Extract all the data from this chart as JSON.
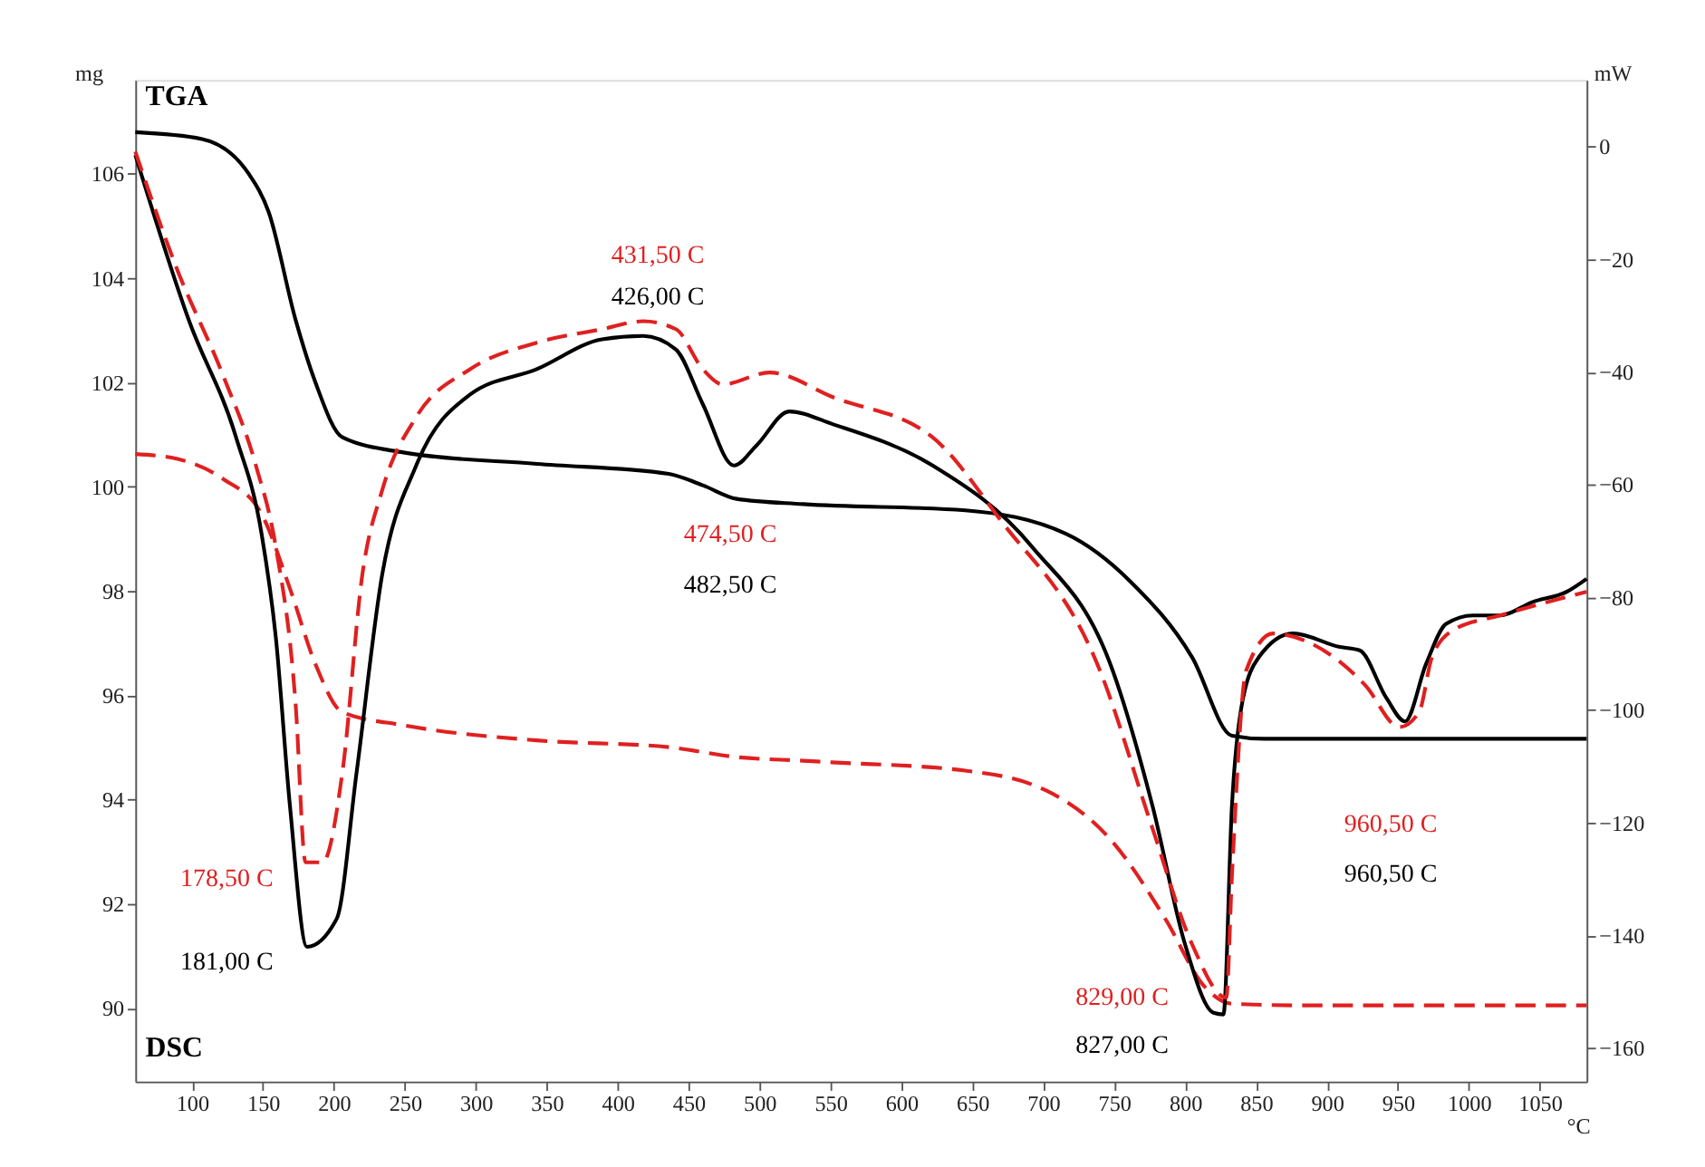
{
  "chart_data": {
    "type": "line",
    "xlabel": "°C",
    "ylabel": "mg",
    "y2label": "mW",
    "xlim": [
      60,
      1083
    ],
    "xticks": [
      100,
      150,
      200,
      250,
      300,
      350,
      400,
      450,
      500,
      550,
      600,
      650,
      700,
      750,
      800,
      850,
      900,
      950,
      1000,
      1050
    ],
    "ylim": [
      88.6,
      107.8
    ],
    "yticks": [
      90,
      92,
      94,
      96,
      98,
      100,
      102,
      104,
      106
    ],
    "y2lim": [
      -165.9,
      11.8
    ],
    "y2ticks": [
      -160,
      -140,
      -120,
      -100,
      -80,
      -60,
      -40,
      -20,
      0
    ],
    "grid": false,
    "series": [
      {
        "color": "#000000",
        "line_style": "solid",
        "x": [
          60,
          107,
          140,
          154,
          173,
          187,
          206,
          249,
          343,
          436,
          460,
          484,
          531,
          645,
          716,
          762,
          805,
          833,
          856,
          1083
        ],
        "values": [
          106.8,
          106.67,
          106.0,
          105.27,
          103.2,
          102.0,
          100.95,
          100.66,
          100.44,
          100.25,
          100.03,
          99.77,
          99.67,
          99.55,
          99.1,
          98.17,
          96.73,
          95.23,
          95.17,
          95.17
        ]
      },
      {
        "color": "#e02020",
        "line_style": "dashed",
        "x": [
          60,
          89,
          122,
          149,
          169,
          187,
          206,
          249,
          343,
          436,
          484,
          531,
          551,
          645,
          702,
          749,
          786,
          814,
          833,
          880,
          1083
        ],
        "values": [
          100.63,
          100.54,
          100.15,
          99.48,
          98.05,
          96.6,
          95.68,
          95.43,
          95.14,
          95.01,
          94.82,
          94.75,
          94.72,
          94.56,
          94.18,
          93.19,
          91.72,
          90.41,
          90.09,
          90.06,
          90.06
        ]
      },
      {
        "axis": "y2",
        "color": "#000000",
        "line_style": "solid",
        "x": [
          60,
          98,
          131,
          149,
          159,
          169,
          181,
          202,
          216,
          234,
          258,
          296,
          343,
          389,
          418,
          441,
          460,
          482,
          498,
          521,
          552,
          622,
          692,
          749,
          777,
          800,
          820,
          827,
          833,
          840,
          852,
          876,
          909,
          923,
          942,
          955,
          970,
          984,
          1003,
          1022,
          1045,
          1069,
          1083
        ],
        "values": [
          -1.5,
          -31,
          -51.6,
          -68.7,
          -87,
          -117,
          -142,
          -137,
          -111,
          -76,
          -56.6,
          -44,
          -39.5,
          -34.2,
          -33.6,
          -36,
          -45.7,
          -56.6,
          -53,
          -47,
          -49.3,
          -56.6,
          -71,
          -93,
          -117,
          -141.6,
          -153.7,
          -154,
          -117,
          -99,
          -90.6,
          -86.4,
          -88.8,
          -89.4,
          -97.9,
          -102,
          -91.7,
          -84.7,
          -83.2,
          -83.2,
          -80.8,
          -79,
          -76.7
        ]
      },
      {
        "axis": "y2",
        "color": "#e02020",
        "line_style": "dashed",
        "x": [
          60,
          89,
          122,
          145,
          159,
          173,
          180,
          192,
          206,
          220,
          234,
          258,
          296,
          343,
          389,
          418,
          441,
          460,
          474,
          507,
          552,
          622,
          669,
          740,
          777,
          805,
          829,
          833,
          843,
          862,
          889,
          927,
          951,
          965,
          974,
          989,
          1022,
          1083
        ],
        "values": [
          -0.9,
          -21.5,
          -40.7,
          -56.6,
          -71,
          -99,
          -127,
          -127,
          -111,
          -76,
          -61,
          -48,
          -39.5,
          -34.8,
          -32.4,
          -31,
          -32.4,
          -39.5,
          -42.2,
          -40.1,
          -44.5,
          -51.6,
          -66,
          -93,
          -121,
          -141.6,
          -151,
          -129.5,
          -93,
          -86.4,
          -88.2,
          -95.6,
          -103,
          -100.3,
          -90.6,
          -85.8,
          -83.2,
          -79
        ]
      }
    ],
    "annotations": [
      "TGA",
      "DSC",
      "431,50 C",
      "426,00 C",
      "474,50 C",
      "482,50 C",
      "178,50 C",
      "181,00 C",
      "829,00 C",
      "827,00 C",
      "960,50 C",
      "960,50 C"
    ]
  }
}
